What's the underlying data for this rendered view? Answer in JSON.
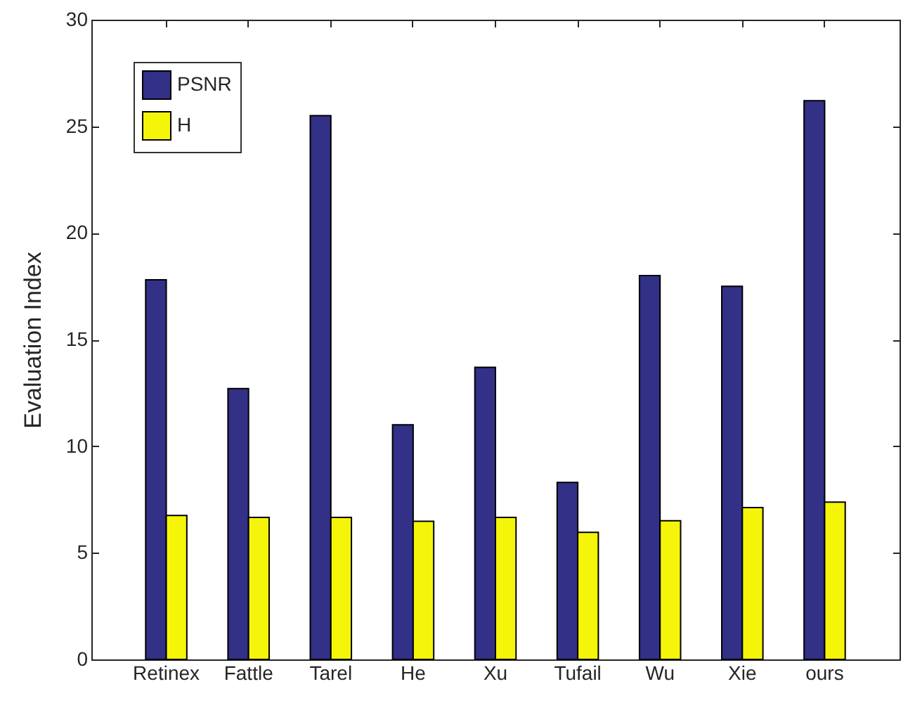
{
  "chart_data": {
    "type": "bar",
    "ylabel": "Evaluation Index",
    "categories": [
      "Retinex",
      "Fattle",
      "Tarel",
      "He",
      "Xu",
      "Tufail",
      "Wu",
      "Xie",
      "ours"
    ],
    "series": [
      {
        "name": "PSNR",
        "color": "#333087",
        "values": [
          17.8,
          12.7,
          25.5,
          11.0,
          13.7,
          8.3,
          18.0,
          17.5,
          26.2
        ]
      },
      {
        "name": "H",
        "color": "#f5f50a",
        "values": [
          6.75,
          6.66,
          6.66,
          6.48,
          6.66,
          5.96,
          6.5,
          7.12,
          7.38
        ]
      }
    ],
    "ylim": [
      0,
      30
    ],
    "yticks": [
      0,
      5,
      10,
      15,
      20,
      25,
      30
    ],
    "grid": false,
    "legend": "top left"
  }
}
